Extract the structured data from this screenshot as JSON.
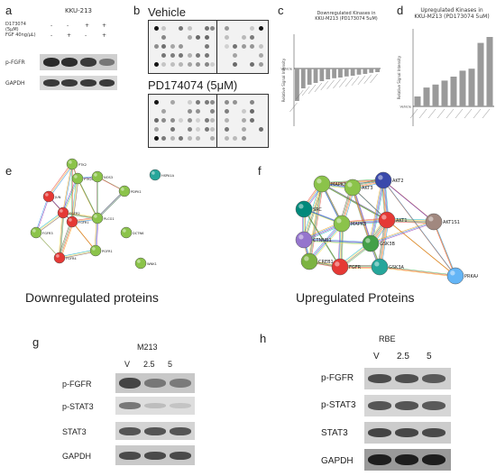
{
  "panel_labels": {
    "a": "a",
    "b": "b",
    "c": "c",
    "d": "d",
    "e": "e",
    "f": "f",
    "g": "g",
    "h": "h"
  },
  "panel_a": {
    "cell_line": "KKU-213",
    "row_d": "D173074 (5μM)",
    "row_fgf": "FGF 40ng/μL)",
    "d_signs": [
      "-",
      "-",
      "+",
      "+"
    ],
    "fgf_signs": [
      "-",
      "+",
      "-",
      "+"
    ],
    "blots": [
      "p-FGFR",
      "GAPDH"
    ]
  },
  "panel_b": {
    "top": "Vehicle",
    "bottom": "PD174074 (5μM)"
  },
  "panel_c": {
    "title_l1": "Downregulated Kinases in",
    "title_l2": "KKU-M213 (PD173074 5uM)",
    "ylabel": "Relative Signal Intensity",
    "baseline_label": "Vehicle"
  },
  "panel_d": {
    "title_l1": "Upregulated Kinases in",
    "title_l2": "KKU-M213 (PD173074 5uM)",
    "ylabel": "Relative Signal Intensity",
    "baseline_label": "Vehicle"
  },
  "panel_e": {
    "caption": "Downregulated proteins",
    "nodes": [
      "PTK2",
      "PTK2B",
      "NOS3",
      "HSPA1A",
      "JUN",
      "PDPK1",
      "FGFR2",
      "FGFR1",
      "PLCG1",
      "FGFR3",
      "DCTN6",
      "FGFR4",
      "PGFR1",
      "WNK1"
    ]
  },
  "panel_f": {
    "caption": "Upregulated Proteins",
    "nodes": [
      "MAPK1",
      "AKT2",
      "SRC",
      "AKT3",
      "MAPK3",
      "AKT1",
      "AKT1S1",
      "CTNNB1",
      "GSK3B",
      "CREB1",
      "FGFR",
      "GSK3A",
      "PRKAA1"
    ]
  },
  "panel_g": {
    "title": "M213",
    "lanes": [
      "V",
      "2.5",
      "5"
    ],
    "rows": [
      "p-FGFR",
      "p-STAT3",
      "STAT3",
      "GAPDH"
    ]
  },
  "panel_h": {
    "title": "RBE",
    "lanes": [
      "V",
      "2.5",
      "5"
    ],
    "rows": [
      "p-FGFR",
      "p-STAT3",
      "STAT3",
      "GAPDH"
    ]
  },
  "chart_data": [
    {
      "type": "bar",
      "title": "Downregulated Kinases in KKU-M213 (PD173074 5uM)",
      "ylabel": "Relative Signal Intensity",
      "categories": [
        "",
        "",
        "",
        "",
        "",
        "",
        "",
        "",
        "",
        "",
        "",
        "",
        "",
        ""
      ],
      "values": [
        -0.9,
        -0.55,
        -0.45,
        -0.4,
        -0.35,
        -0.3,
        -0.27,
        -0.25,
        -0.22,
        -0.2,
        -0.17,
        -0.15,
        -0.12,
        -0.1
      ]
    },
    {
      "type": "bar",
      "title": "Upregulated Kinases in KKU-M213 (PD173074 5uM)",
      "ylabel": "Relative Signal Intensity",
      "categories": [
        "",
        "",
        "",
        "",
        "",
        "",
        "",
        "",
        ""
      ],
      "values": [
        0.5,
        0.95,
        1.1,
        1.3,
        1.5,
        1.8,
        1.9,
        3.2,
        3.5
      ]
    }
  ]
}
